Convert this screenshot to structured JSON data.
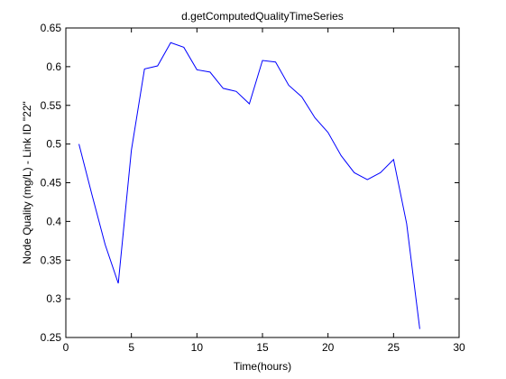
{
  "chart_data": {
    "type": "line",
    "title": "d.getComputedQualityTimeSeries",
    "xlabel": "Time(hours)",
    "ylabel": "Node Quality (mg/L) - Link ID \"22\"",
    "xlim": [
      0,
      30
    ],
    "ylim": [
      0.25,
      0.65
    ],
    "xticks": [
      0,
      5,
      10,
      15,
      20,
      25,
      30
    ],
    "xtick_labels": [
      "0",
      "5",
      "10",
      "15",
      "20",
      "25",
      "30"
    ],
    "yticks": [
      0.25,
      0.3,
      0.35,
      0.4,
      0.45,
      0.5,
      0.55,
      0.6,
      0.65
    ],
    "ytick_labels": [
      "0.25",
      "0.3",
      "0.35",
      "0.4",
      "0.45",
      "0.5",
      "0.55",
      "0.6",
      "0.65"
    ],
    "grid": false,
    "series": [
      {
        "color": "#0000ff",
        "x": [
          1,
          2,
          3,
          4,
          5,
          6,
          7,
          8,
          9,
          10,
          11,
          12,
          13,
          14,
          15,
          16,
          17,
          18,
          19,
          20,
          21,
          22,
          23,
          24,
          25,
          26,
          27
        ],
        "y": [
          0.5,
          0.434,
          0.37,
          0.32,
          0.492,
          0.597,
          0.601,
          0.631,
          0.625,
          0.596,
          0.593,
          0.572,
          0.568,
          0.552,
          0.608,
          0.606,
          0.576,
          0.561,
          0.534,
          0.515,
          0.485,
          0.463,
          0.454,
          0.463,
          0.48,
          0.397,
          0.261
        ]
      }
    ]
  }
}
